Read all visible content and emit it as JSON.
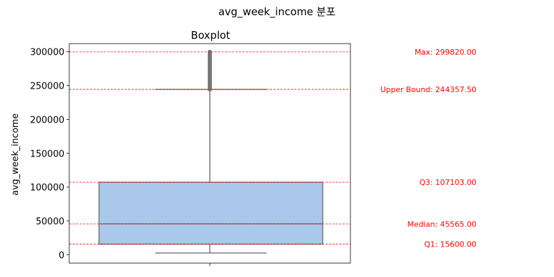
{
  "suptitle": "avg_week_income 분포",
  "chart_data": {
    "type": "boxplot",
    "title": "Boxplot",
    "xlabel": "",
    "ylabel": "avg_week_income",
    "ylim": [
      -12500,
      312000
    ],
    "yticks": [
      0,
      50000,
      100000,
      150000,
      200000,
      250000,
      300000
    ],
    "box": {
      "whisker_low": 2500,
      "q1": 15600,
      "median": 45565,
      "q3": 107103,
      "whisker_high": 244357.5,
      "outliers_from": 244357.5,
      "outliers_to": 299820,
      "color": "#a9c8ec"
    },
    "reference_lines": [
      {
        "label": "Max: 299820.00",
        "value": 299820
      },
      {
        "label": "Upper Bound: 244357.50",
        "value": 244357.5
      },
      {
        "label": "Q3: 107103.00",
        "value": 107103
      },
      {
        "label": "Median: 45565.00",
        "value": 45565
      },
      {
        "label": "Q1: 15600.00",
        "value": 15600
      }
    ],
    "line_color": "#ff0000",
    "grid": false,
    "legend": "none"
  }
}
